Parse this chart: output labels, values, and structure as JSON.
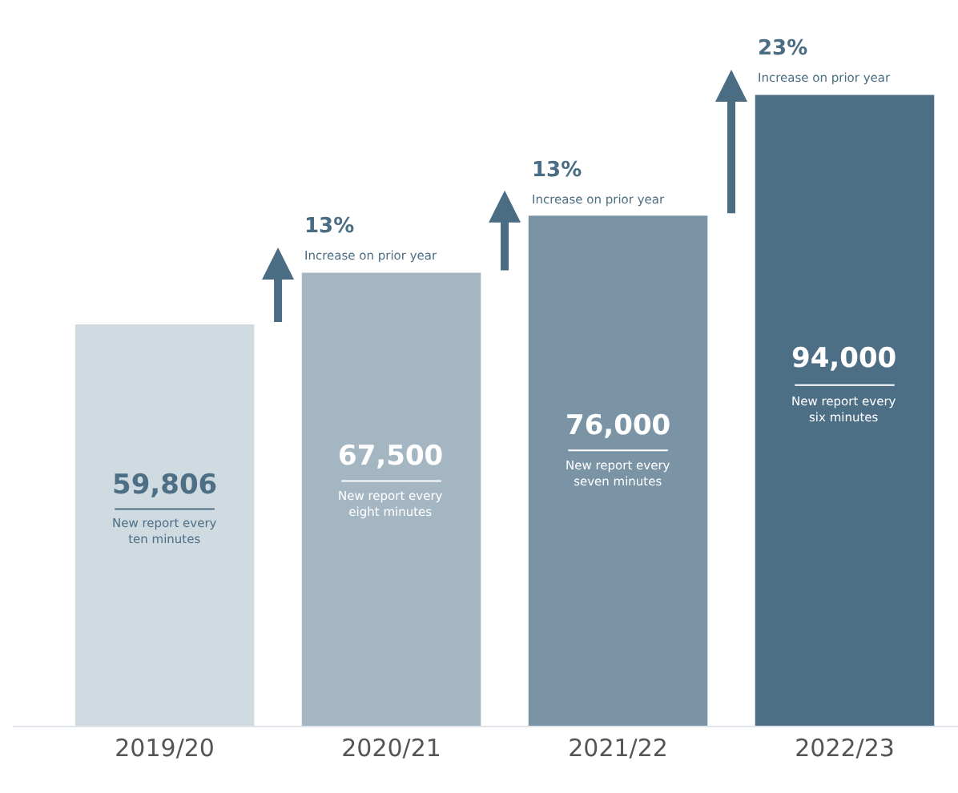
{
  "chart_data": {
    "type": "bar",
    "categories": [
      "2019/20",
      "2020/21",
      "2021/22",
      "2022/23"
    ],
    "values": [
      59806,
      67500,
      76000,
      94000
    ],
    "colors": [
      "#d0dae1",
      "#a4b6c2",
      "#7a93a5",
      "#4d6f86"
    ],
    "value_labels": [
      "59,806",
      "67,500",
      "76,000",
      "94,000"
    ],
    "annotations": [
      "New report every\nten minutes",
      "New report every\neight minutes",
      "New report every\nseven minutes",
      "New report every\nsix minutes",
      "13%\nIncrease on prior year",
      "13%\nIncrease on prior year",
      "23%\nIncrease on prior year"
    ],
    "legend": false
  }
}
